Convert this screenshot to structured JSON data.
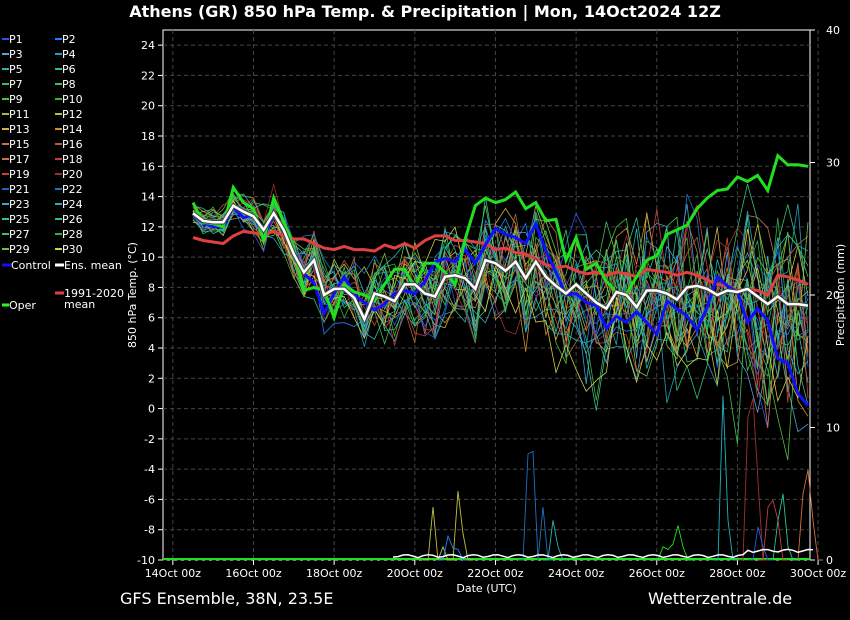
{
  "title": "Athens  (GR)  850 hPa Temp. & Precipitation | Mon, 14Oct2024 12Z",
  "footer_left": "GFS Ensemble, 38N, 23.5E",
  "footer_right": "Wetterzentrale.de",
  "chart_data": {
    "type": "line",
    "title": "Athens  (GR)  850 hPa Temp. & Precipitation | Mon, 14Oct2024 12Z",
    "xlabel": "Date (UTC)",
    "ylabel": "850 hPa Temp. (°C)",
    "ylabel_right": "Precipitation (mm)",
    "ylim": [
      -10,
      25
    ],
    "ylim_right": [
      0,
      40
    ],
    "xlim": [
      "14Oct 00z",
      "30Oct 06z"
    ],
    "x_ticks": [
      "14Oct 00z",
      "16Oct 00z",
      "18Oct 00z",
      "20Oct 00z",
      "22Oct 00z",
      "24Oct 00z",
      "26Oct 00z",
      "28Oct 00z",
      "30Oct 00z"
    ],
    "y_ticks": [
      -10,
      -8,
      -6,
      -4,
      -2,
      0,
      2,
      4,
      6,
      8,
      10,
      12,
      14,
      16,
      18,
      20,
      22,
      24
    ],
    "y_ticks_right": [
      0,
      10,
      20,
      30,
      40
    ],
    "grid": true,
    "legend_placement": "left",
    "legend": [
      {
        "label": "P1",
        "color": "#3050ff"
      },
      {
        "label": "P2",
        "color": "#2080ff"
      },
      {
        "label": "P3",
        "color": "#5a9fd0"
      },
      {
        "label": "P4",
        "color": "#20a0c0"
      },
      {
        "label": "P5",
        "color": "#30b0b0"
      },
      {
        "label": "P6",
        "color": "#30c090"
      },
      {
        "label": "P7",
        "color": "#30c070"
      },
      {
        "label": "P8",
        "color": "#40c050"
      },
      {
        "label": "P9",
        "color": "#50c040"
      },
      {
        "label": "P10",
        "color": "#40b030"
      },
      {
        "label": "P11",
        "color": "#a0c040"
      },
      {
        "label": "P12",
        "color": "#c0c040"
      },
      {
        "label": "P13",
        "color": "#d0b040"
      },
      {
        "label": "P14",
        "color": "#d09030"
      },
      {
        "label": "P15",
        "color": "#c07050"
      },
      {
        "label": "P16",
        "color": "#b06040"
      },
      {
        "label": "P17",
        "color": "#d07040"
      },
      {
        "label": "P18",
        "color": "#c04040"
      },
      {
        "label": "P19",
        "color": "#d04030"
      },
      {
        "label": "P20",
        "color": "#a03030"
      },
      {
        "label": "P21",
        "color": "#2060d0"
      },
      {
        "label": "P22",
        "color": "#2070c0"
      },
      {
        "label": "P23",
        "color": "#40a0d0"
      },
      {
        "label": "P24",
        "color": "#20b0c0"
      },
      {
        "label": "P25",
        "color": "#30c0a0"
      },
      {
        "label": "P26",
        "color": "#30c090"
      },
      {
        "label": "P27",
        "color": "#40c060"
      },
      {
        "label": "P28",
        "color": "#30b040"
      },
      {
        "label": "P29",
        "color": "#70c040"
      },
      {
        "label": "P30",
        "color": "#d0d040"
      },
      {
        "label": "Control",
        "color": "#1010ff"
      },
      {
        "label": "Ens. mean",
        "color": "#ffffff"
      },
      {
        "label": "1991-2020 mean",
        "color": "#e04040"
      },
      {
        "label": "Oper",
        "color": "#20ff20"
      }
    ],
    "x_step_hours": 6,
    "series_special": [
      {
        "name": "Oper",
        "color": "#20e020",
        "values": [
          13.6,
          12.3,
          12.2,
          12.0,
          14.6,
          13.6,
          13.2,
          11.1,
          13.9,
          12.3,
          10.6,
          7.8,
          8.0,
          7.8,
          6.0,
          8.2,
          7.7,
          7.5,
          7.1,
          8.2,
          9.2,
          9.2,
          8.0,
          9.6,
          9.6,
          9.0,
          8.2,
          11.2,
          13.4,
          13.9,
          13.6,
          13.8,
          14.3,
          13.2,
          13.6,
          12.4,
          12.5,
          9.8,
          11.3,
          9.2,
          9.6,
          8.4,
          7.7,
          7.6,
          8.7,
          9.8,
          10.1,
          11.5,
          11.8,
          12.1,
          13.2,
          13.9,
          14.4,
          14.5,
          15.3,
          15.0,
          15.4,
          14.4,
          16.7,
          16.1,
          16.1,
          16.0
        ]
      },
      {
        "name": "Control",
        "color": "#1010ff",
        "values": [
          12.8,
          12.3,
          12.0,
          12.0,
          13.3,
          12.6,
          12.8,
          11.3,
          12.8,
          11.9,
          10.5,
          8.9,
          8.3,
          6.3,
          7.6,
          8.7,
          7.5,
          7.0,
          6.5,
          6.9,
          7.6,
          7.8,
          7.6,
          8.4,
          9.7,
          9.9,
          9.7,
          10.5,
          9.6,
          10.8,
          11.9,
          11.5,
          11.3,
          10.9,
          12.2,
          10.4,
          9.0,
          7.5,
          7.6,
          7.0,
          6.8,
          5.3,
          6.1,
          5.7,
          6.4,
          5.7,
          4.9,
          7.1,
          6.6,
          6.1,
          5.2,
          6.7,
          8.7,
          8.1,
          7.7,
          5.7,
          6.6,
          5.8,
          3.3,
          3.0,
          1.0,
          0.2
        ]
      },
      {
        "name": "Ens. mean",
        "color": "#ffffff",
        "values": [
          12.9,
          12.4,
          12.3,
          12.3,
          13.4,
          13.0,
          12.7,
          11.8,
          12.9,
          11.8,
          10.2,
          9.0,
          9.8,
          7.5,
          7.9,
          7.9,
          7.3,
          5.9,
          7.6,
          7.4,
          7.1,
          8.2,
          8.2,
          7.6,
          7.4,
          8.7,
          8.8,
          8.6,
          7.9,
          9.8,
          9.6,
          9.1,
          9.7,
          8.6,
          9.7,
          8.7,
          8.1,
          7.6,
          8.2,
          7.6,
          7.0,
          6.6,
          7.7,
          7.5,
          6.7,
          7.8,
          7.8,
          7.6,
          7.2,
          8.0,
          8.1,
          7.9,
          7.5,
          7.8,
          7.7,
          7.9,
          7.4,
          6.9,
          7.4,
          6.9,
          6.9,
          6.8
        ]
      },
      {
        "name": "1991-2020 mean",
        "color": "#e04040",
        "values": [
          11.3,
          11.1,
          11.0,
          10.9,
          11.4,
          11.7,
          11.6,
          11.5,
          11.7,
          11.4,
          11.2,
          11.2,
          10.9,
          10.6,
          10.5,
          10.7,
          10.5,
          10.5,
          10.4,
          10.8,
          10.6,
          10.9,
          10.6,
          11.1,
          11.4,
          11.4,
          11.1,
          11.1,
          11.0,
          10.9,
          10.5,
          10.6,
          10.3,
          10.2,
          9.9,
          9.5,
          9.3,
          9.4,
          9.1,
          8.9,
          9.0,
          8.8,
          9.0,
          8.9,
          8.7,
          9.2,
          9.1,
          9.0,
          8.8,
          9.0,
          8.8,
          8.5,
          8.2,
          8.1,
          7.8,
          7.9,
          7.8,
          7.5,
          8.8,
          8.7,
          8.5,
          8.2
        ]
      }
    ],
    "precipitation_peaks": [
      {
        "color": "#c0c040",
        "peaks": [
          [
            48,
            4.0
          ],
          [
            50,
            1.0
          ],
          [
            53,
            5.2
          ],
          [
            54,
            2.0
          ]
        ]
      },
      {
        "color": "#2080ff",
        "peaks": [
          [
            51,
            1.8
          ],
          [
            52,
            0.9
          ],
          [
            53,
            0.8
          ]
        ]
      },
      {
        "color": "#2070c0",
        "peaks": [
          [
            67,
            8.0
          ],
          [
            68,
            8.2
          ],
          [
            70,
            4.0
          ]
        ]
      },
      {
        "color": "#30b0b0",
        "peaks": [
          [
            72,
            3.0
          ],
          [
            73,
            1.0
          ]
        ]
      },
      {
        "color": "#20b0c0",
        "peaks": [
          [
            106,
            12.4
          ],
          [
            107,
            3.0
          ]
        ]
      },
      {
        "color": "#a03030",
        "peaks": [
          [
            111,
            10.8
          ],
          [
            112,
            12.2
          ],
          [
            113,
            6.0
          ]
        ]
      },
      {
        "color": "#c04040",
        "peaks": [
          [
            115,
            4.0
          ],
          [
            116,
            4.5
          ],
          [
            117,
            3.0
          ]
        ]
      },
      {
        "color": "#d07040",
        "peaks": [
          [
            122,
            5.0
          ],
          [
            123,
            6.8
          ],
          [
            124,
            3.0
          ]
        ]
      },
      {
        "color": "#30c090",
        "peaks": [
          [
            117,
            3.0
          ],
          [
            118,
            5.0
          ],
          [
            119,
            1.0
          ]
        ]
      },
      {
        "color": "#2060d0",
        "peaks": [
          [
            113,
            2.5
          ],
          [
            114,
            1.0
          ]
        ]
      },
      {
        "color": "#20e020",
        "peaks": [
          [
            94,
            1.0
          ],
          [
            95,
            0.8
          ],
          [
            96,
            1.2
          ],
          [
            97,
            2.6
          ],
          [
            98,
            1.0
          ]
        ]
      }
    ],
    "ensemble_members": 30
  }
}
